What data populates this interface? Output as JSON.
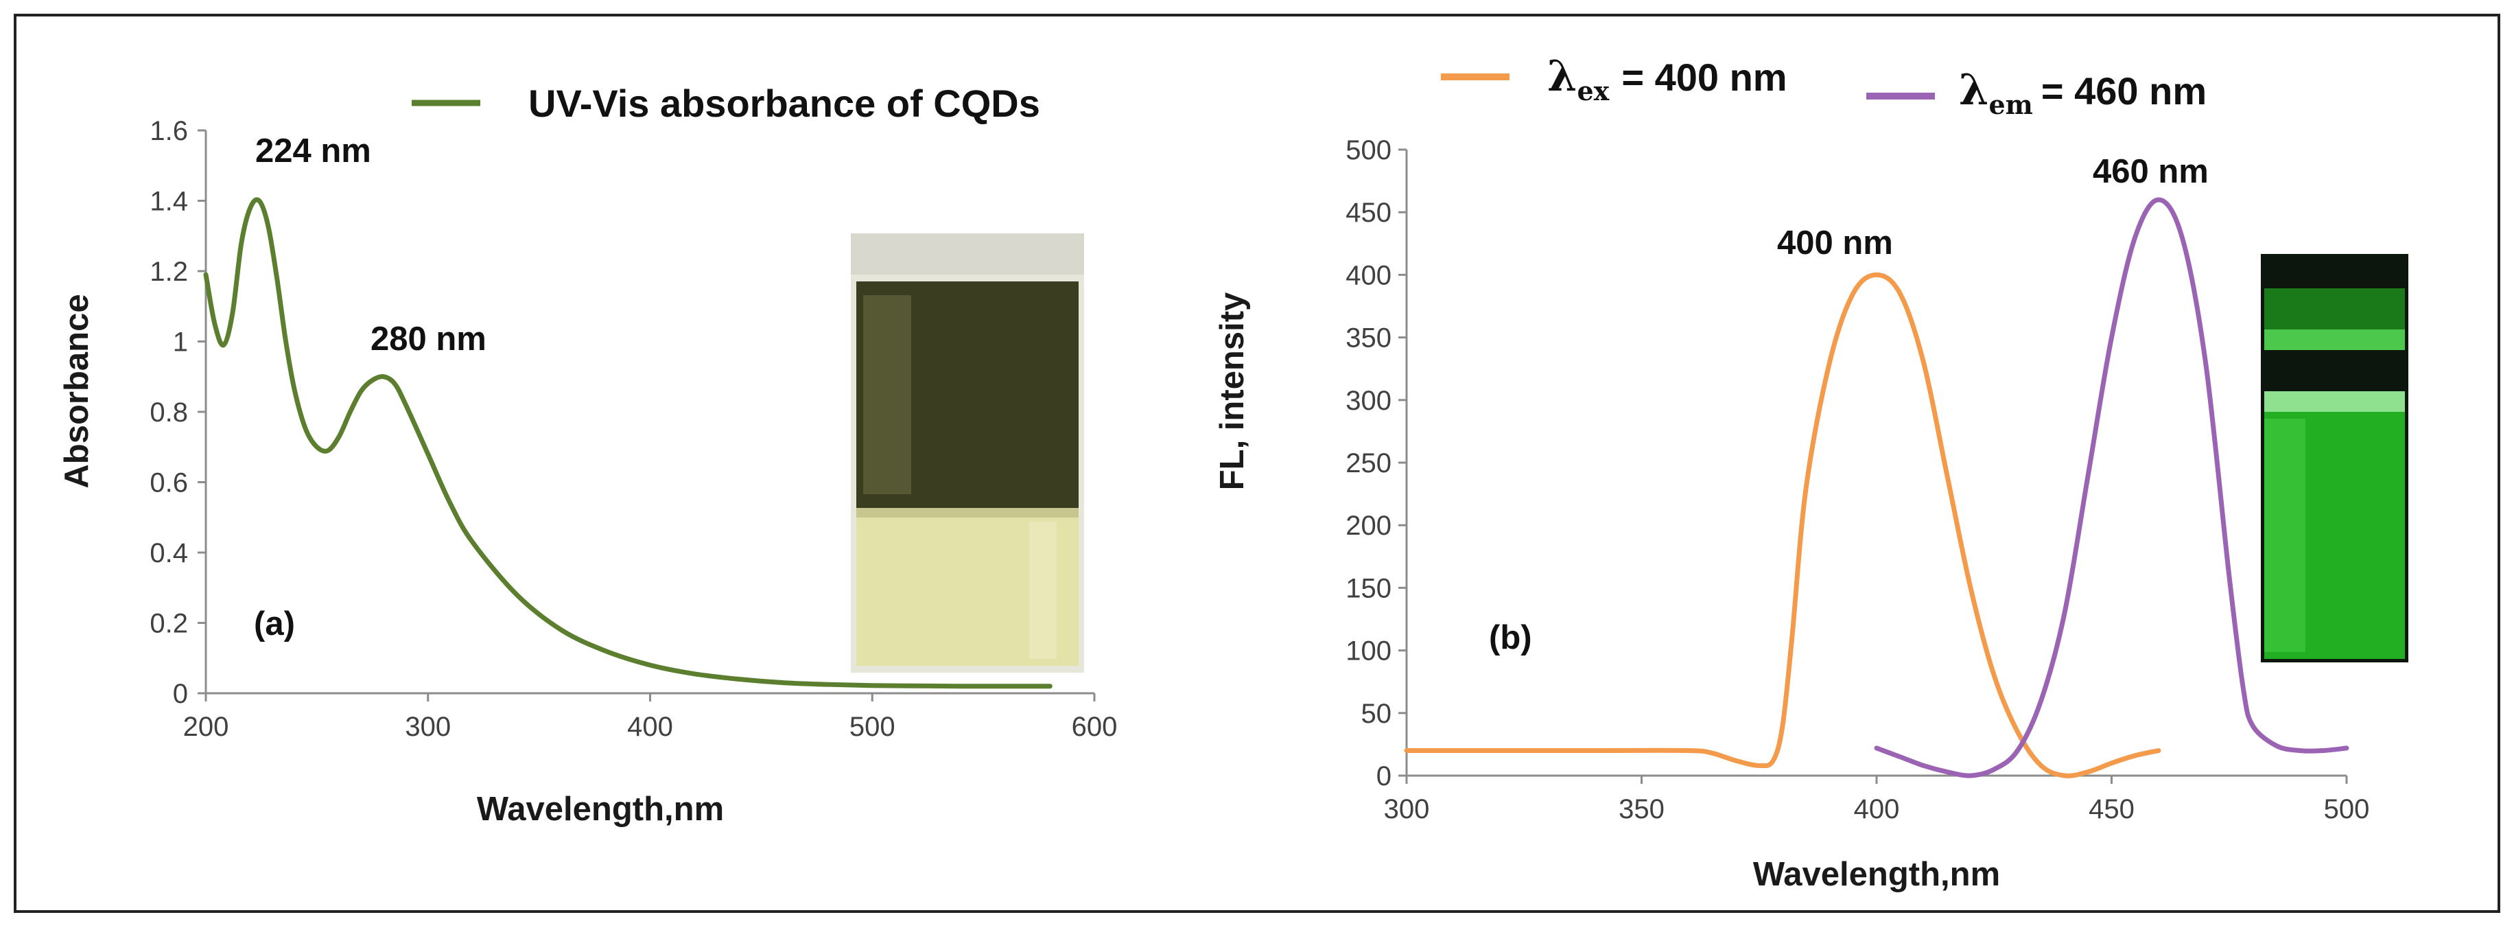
{
  "chart_data": [
    {
      "type": "line",
      "panel_label": "(a)",
      "title": "",
      "xlabel": "Wavelength,nm",
      "ylabel": "Absorbance",
      "xlim": [
        200,
        600
      ],
      "ylim": [
        0,
        1.6
      ],
      "xticks": [
        "200",
        "300",
        "400",
        "500",
        "600"
      ],
      "yticks": [
        "0",
        "0.2",
        "0.4",
        "0.6",
        "0.8",
        "1",
        "1.2",
        "1.4",
        "1.6"
      ],
      "series": [
        {
          "name": "UV-Vis absorbance of CQDs",
          "color": "#5b7f2e",
          "x": [
            200,
            204,
            208,
            212,
            216,
            220,
            224,
            228,
            232,
            236,
            240,
            245,
            250,
            255,
            260,
            265,
            270,
            275,
            280,
            285,
            290,
            300,
            310,
            320,
            340,
            360,
            380,
            400,
            420,
            440,
            460,
            480,
            500,
            520,
            540,
            560,
            580
          ],
          "y": [
            1.19,
            1.05,
            0.99,
            1.08,
            1.28,
            1.38,
            1.4,
            1.33,
            1.18,
            1.0,
            0.86,
            0.75,
            0.7,
            0.69,
            0.73,
            0.8,
            0.86,
            0.89,
            0.9,
            0.88,
            0.82,
            0.68,
            0.54,
            0.43,
            0.28,
            0.18,
            0.12,
            0.08,
            0.055,
            0.04,
            0.03,
            0.025,
            0.022,
            0.021,
            0.02,
            0.02,
            0.02
          ]
        }
      ],
      "annotations": [
        {
          "text": "224 nm",
          "x": 224,
          "y": 1.4
        },
        {
          "text": "280 nm",
          "x": 280,
          "y": 0.9
        }
      ]
    },
    {
      "type": "line",
      "panel_label": "(b)",
      "title": "",
      "xlabel": "Wavelength,nm",
      "ylabel": "FL, intensity",
      "xlim": [
        300,
        500
      ],
      "ylim": [
        0,
        500
      ],
      "xticks": [
        "300",
        "350",
        "400",
        "450",
        "500"
      ],
      "yticks": [
        "0",
        "50",
        "100",
        "150",
        "200",
        "250",
        "300",
        "350",
        "400",
        "450",
        "500"
      ],
      "legend": [
        {
          "symbol": "λ",
          "subscript": "ex",
          "text": "= 400 nm",
          "color": "#f39a4b"
        },
        {
          "symbol": "λ",
          "subscript": "em",
          "text": "= 460 nm",
          "color": "#9b63b3"
        }
      ],
      "series": [
        {
          "name": "excitation",
          "color": "#f39a4b",
          "x": [
            300,
            320,
            340,
            360,
            365,
            370,
            375,
            378,
            380,
            382,
            385,
            390,
            395,
            400,
            405,
            410,
            415,
            420,
            425,
            430,
            435,
            440,
            445,
            450,
            455,
            460
          ],
          "y": [
            20,
            20,
            20,
            20,
            18,
            12,
            8,
            12,
            40,
            110,
            230,
            330,
            385,
            400,
            385,
            330,
            240,
            150,
            80,
            35,
            8,
            0,
            3,
            10,
            16,
            20
          ]
        },
        {
          "name": "emission",
          "color": "#9b63b3",
          "x": [
            400,
            405,
            410,
            415,
            420,
            425,
            430,
            435,
            440,
            445,
            450,
            455,
            460,
            465,
            470,
            475,
            478,
            480,
            485,
            490,
            495,
            500
          ],
          "y": [
            22,
            15,
            8,
            3,
            0,
            5,
            20,
            60,
            130,
            240,
            350,
            430,
            460,
            430,
            330,
            160,
            70,
            40,
            24,
            20,
            20,
            22
          ]
        }
      ],
      "annotations": [
        {
          "text": "400 nm",
          "x": 400,
          "y": 400
        },
        {
          "text": "460 nm",
          "x": 460,
          "y": 460
        }
      ]
    }
  ]
}
